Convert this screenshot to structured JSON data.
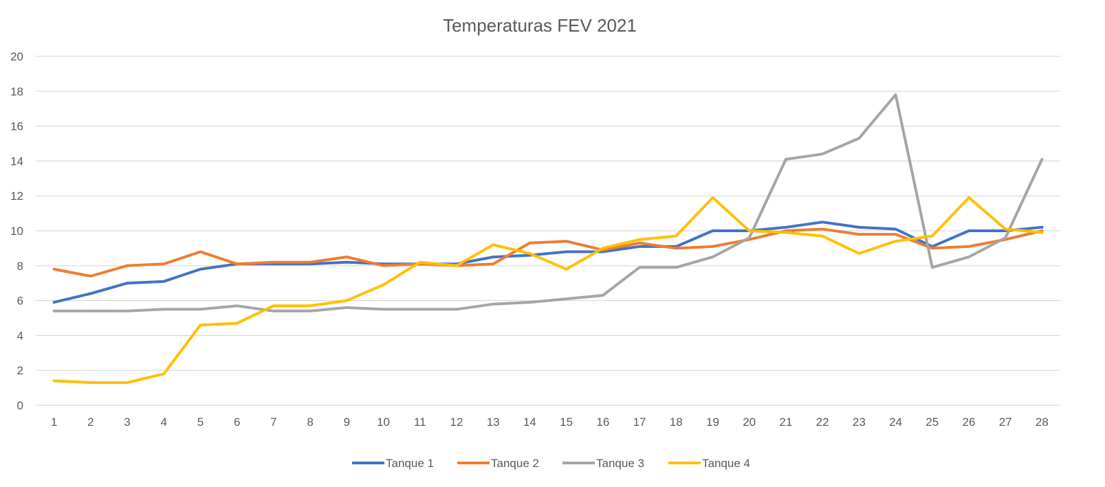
{
  "chart_data": {
    "type": "line",
    "title": "Temperaturas FEV 2021",
    "xlabel": "",
    "ylabel": "",
    "x": [
      "1",
      "2",
      "3",
      "4",
      "5",
      "6",
      "7",
      "8",
      "9",
      "10",
      "11",
      "12",
      "13",
      "14",
      "15",
      "16",
      "17",
      "18",
      "19",
      "20",
      "21",
      "22",
      "23",
      "24",
      "25",
      "26",
      "27",
      "28"
    ],
    "ylim": [
      0,
      20
    ],
    "yticks": [
      "0",
      "2",
      "4",
      "6",
      "8",
      "10",
      "12",
      "14",
      "16",
      "18",
      "20"
    ],
    "grid": true,
    "legend_position": "bottom",
    "series": [
      {
        "name": "Tanque 1",
        "color": "#4472c4",
        "values": [
          5.9,
          6.4,
          7.0,
          7.1,
          7.8,
          8.1,
          8.1,
          8.1,
          8.2,
          8.1,
          8.1,
          8.1,
          8.5,
          8.6,
          8.8,
          8.8,
          9.1,
          9.1,
          10.0,
          10.0,
          10.2,
          10.5,
          10.2,
          10.1,
          9.1,
          10.0,
          10.0,
          10.2
        ]
      },
      {
        "name": "Tanque 2",
        "color": "#ed7d31",
        "values": [
          7.8,
          7.4,
          8.0,
          8.1,
          8.8,
          8.1,
          8.2,
          8.2,
          8.5,
          8.0,
          8.1,
          8.0,
          8.1,
          9.3,
          9.4,
          8.9,
          9.3,
          9.0,
          9.1,
          9.5,
          10.0,
          10.1,
          9.8,
          9.8,
          9.0,
          9.1,
          9.5,
          10.0
        ]
      },
      {
        "name": "Tanque 3",
        "color": "#a5a5a5",
        "values": [
          5.4,
          5.4,
          5.4,
          5.5,
          5.5,
          5.7,
          5.4,
          5.4,
          5.6,
          5.5,
          5.5,
          5.5,
          5.8,
          5.9,
          6.1,
          6.3,
          7.9,
          7.9,
          8.5,
          9.6,
          14.1,
          14.4,
          15.3,
          17.8,
          7.9,
          8.5,
          9.6,
          14.1
        ]
      },
      {
        "name": "Tanque 4",
        "color": "#ffc000",
        "values": [
          1.4,
          1.3,
          1.3,
          1.8,
          4.6,
          4.7,
          5.7,
          5.7,
          6.0,
          6.9,
          8.2,
          8.0,
          9.2,
          8.7,
          7.8,
          9.0,
          9.5,
          9.7,
          11.9,
          10.0,
          9.9,
          9.7,
          8.7,
          9.4,
          9.7,
          11.9,
          10.1,
          9.9
        ]
      }
    ]
  }
}
